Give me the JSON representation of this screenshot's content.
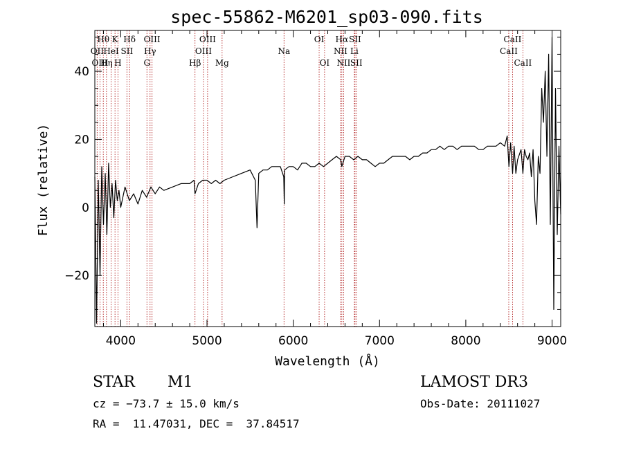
{
  "chart_data": {
    "type": "line",
    "title": "spec-55862-M6201_sp03-090.fits",
    "xlabel": "Wavelength (Å)",
    "ylabel": "Flux (relative)",
    "xlim": [
      3700,
      9100
    ],
    "ylim": [
      -35,
      52
    ],
    "xticks": [
      4000,
      5000,
      6000,
      7000,
      8000,
      9000
    ],
    "yticks": [
      -20,
      0,
      20,
      40
    ],
    "spectrum": {
      "x": [
        3700,
        3720,
        3740,
        3760,
        3780,
        3800,
        3820,
        3840,
        3860,
        3880,
        3900,
        3920,
        3940,
        3960,
        3980,
        4000,
        4050,
        4100,
        4150,
        4200,
        4250,
        4300,
        4350,
        4400,
        4450,
        4500,
        4600,
        4700,
        4800,
        4850,
        4861,
        4900,
        4950,
        5000,
        5050,
        5100,
        5150,
        5200,
        5300,
        5400,
        5500,
        5560,
        5580,
        5600,
        5650,
        5700,
        5750,
        5800,
        5850,
        5890,
        5896,
        5900,
        5950,
        6000,
        6050,
        6100,
        6150,
        6200,
        6250,
        6300,
        6350,
        6400,
        6450,
        6500,
        6550,
        6563,
        6600,
        6650,
        6700,
        6750,
        6800,
        6850,
        6900,
        6950,
        7000,
        7050,
        7100,
        7150,
        7200,
        7250,
        7300,
        7350,
        7400,
        7450,
        7500,
        7550,
        7600,
        7650,
        7700,
        7750,
        7800,
        7850,
        7900,
        7950,
        8000,
        8050,
        8100,
        8150,
        8200,
        8250,
        8300,
        8350,
        8400,
        8450,
        8480,
        8500,
        8520,
        8542,
        8560,
        8580,
        8600,
        8640,
        8662,
        8680,
        8700,
        8720,
        8740,
        8760,
        8780,
        8800,
        8820,
        8840,
        8860,
        8880,
        8900,
        8920,
        8940,
        8960,
        8980,
        9000,
        9020,
        9040,
        9060,
        9080,
        9100
      ],
      "y": [
        9,
        -34,
        8,
        -20,
        12,
        -5,
        10,
        -8,
        13,
        0,
        7,
        -3,
        8,
        2,
        5,
        0,
        6,
        2,
        4,
        1,
        5,
        3,
        6,
        4,
        6,
        5,
        6,
        7,
        7,
        8,
        4,
        7,
        8,
        8,
        7,
        8,
        7,
        8,
        9,
        10,
        11,
        8,
        -6,
        10,
        11,
        11,
        12,
        12,
        12,
        9,
        1,
        11,
        12,
        12,
        11,
        13,
        13,
        12,
        12,
        13,
        12,
        13,
        14,
        15,
        14,
        12,
        15,
        15,
        14,
        15,
        14,
        14,
        13,
        12,
        13,
        13,
        14,
        15,
        15,
        15,
        15,
        14,
        15,
        15,
        16,
        16,
        17,
        17,
        18,
        17,
        18,
        18,
        17,
        18,
        18,
        18,
        18,
        17,
        17,
        18,
        18,
        18,
        19,
        18,
        21,
        12,
        19,
        10,
        18,
        10,
        14,
        17,
        10,
        17,
        15,
        14,
        16,
        9,
        17,
        2,
        -5,
        15,
        10,
        35,
        25,
        40,
        15,
        45,
        -5,
        50,
        -30,
        35,
        -8,
        18,
        -2
      ]
    },
    "lines": [
      {
        "label": "Hθ",
        "wl": 3798,
        "row": 0
      },
      {
        "label": "K",
        "wl": 3934,
        "row": 0
      },
      {
        "label": "Hδ",
        "wl": 4102,
        "row": 0
      },
      {
        "label": "OIII",
        "wl": 4363,
        "row": 0
      },
      {
        "label": "OIII",
        "wl": 5007,
        "row": 0
      },
      {
        "label": "OI",
        "wl": 6300,
        "row": 0
      },
      {
        "label": "Hα",
        "wl": 6563,
        "row": 0
      },
      {
        "label": "SII",
        "wl": 6716,
        "row": 0
      },
      {
        "label": "CaII",
        "wl": 8542,
        "row": 0
      },
      {
        "label": "OII",
        "wl": 3727,
        "row": 1
      },
      {
        "label": "HeI",
        "wl": 3889,
        "row": 1
      },
      {
        "label": "SII",
        "wl": 4072,
        "row": 1
      },
      {
        "label": "Hγ",
        "wl": 4340,
        "row": 1
      },
      {
        "label": "OIII",
        "wl": 4959,
        "row": 1
      },
      {
        "label": "Na",
        "wl": 5893,
        "row": 1
      },
      {
        "label": "NII",
        "wl": 6548,
        "row": 1
      },
      {
        "label": "Li",
        "wl": 6708,
        "row": 1
      },
      {
        "label": "CaII",
        "wl": 8498,
        "row": 1
      },
      {
        "label": "OIII",
        "wl": 3760,
        "row": 2
      },
      {
        "label": "Hη",
        "wl": 3835,
        "row": 2
      },
      {
        "label": "H",
        "wl": 3968,
        "row": 2
      },
      {
        "label": "G",
        "wl": 4304,
        "row": 2
      },
      {
        "label": "Hβ",
        "wl": 4861,
        "row": 2
      },
      {
        "label": "Mg",
        "wl": 5175,
        "row": 2
      },
      {
        "label": "OI",
        "wl": 6363,
        "row": 2
      },
      {
        "label": "NII",
        "wl": 6584,
        "row": 2
      },
      {
        "label": "SII",
        "wl": 6731,
        "row": 2
      },
      {
        "label": "CaII",
        "wl": 8662,
        "row": 2
      }
    ]
  },
  "info": {
    "object_class": "STAR",
    "subclass": "M1",
    "survey": "LAMOST DR3",
    "cz": "cz = −73.7 ± 15.0 km/s",
    "obs_date": "Obs-Date: 20111027",
    "coords": "RA =  11.47031, DEC =  37.84517"
  }
}
